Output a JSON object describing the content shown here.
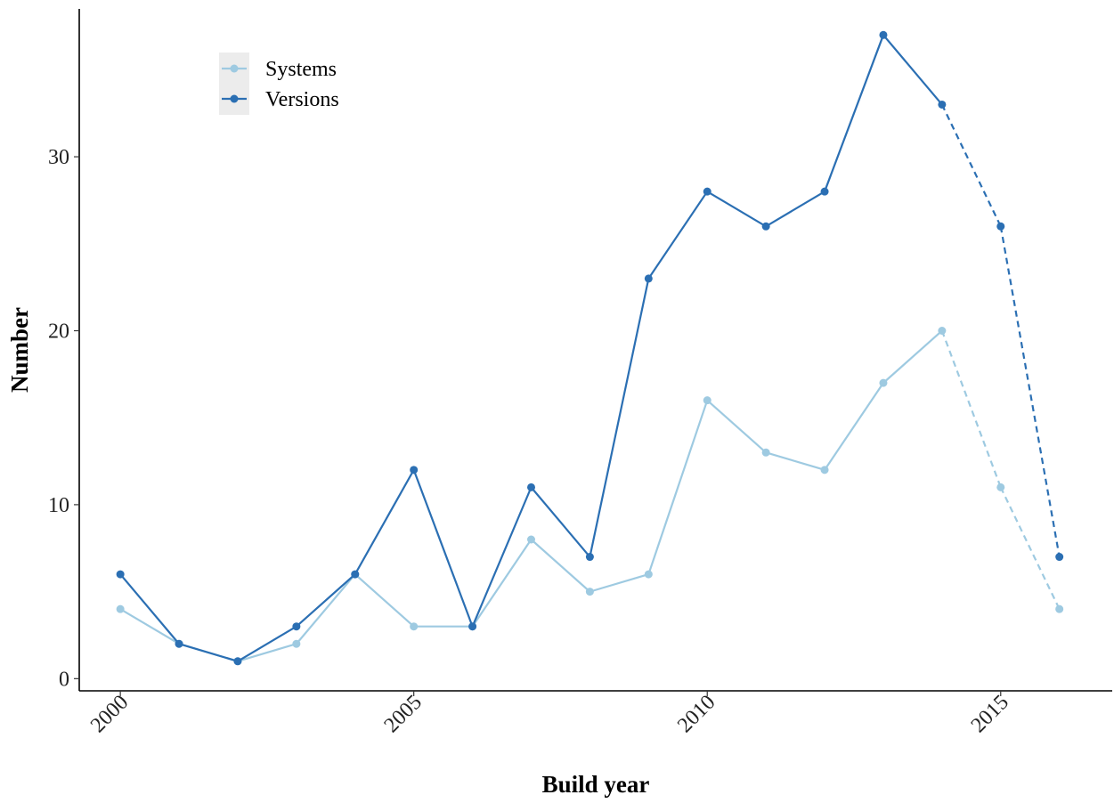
{
  "chart_data": {
    "type": "line",
    "title": "",
    "xlabel": "Build year",
    "ylabel": "Number",
    "xlim": [
      1999.3,
      2016.9
    ],
    "ylim": [
      -0.7,
      38.5
    ],
    "x_ticks": [
      2000,
      2005,
      2010,
      2015
    ],
    "y_ticks": [
      0,
      10,
      20,
      30
    ],
    "grid": false,
    "legend_position": "top-left",
    "x": [
      2000,
      2001,
      2002,
      2003,
      2004,
      2005,
      2006,
      2007,
      2008,
      2009,
      2010,
      2011,
      2012,
      2013,
      2014,
      2015,
      2016
    ],
    "dashed_from_x": 2014,
    "series": [
      {
        "name": "Systems",
        "color": "#9ecae1",
        "values": [
          4,
          2,
          1,
          2,
          6,
          3,
          3,
          8,
          5,
          6,
          16,
          13,
          12,
          17,
          20,
          11,
          4
        ]
      },
      {
        "name": "Versions",
        "color": "#2b6fb3",
        "values": [
          6,
          2,
          1,
          3,
          6,
          12,
          3,
          11,
          7,
          23,
          28,
          26,
          28,
          37,
          33,
          26,
          7
        ]
      }
    ]
  }
}
